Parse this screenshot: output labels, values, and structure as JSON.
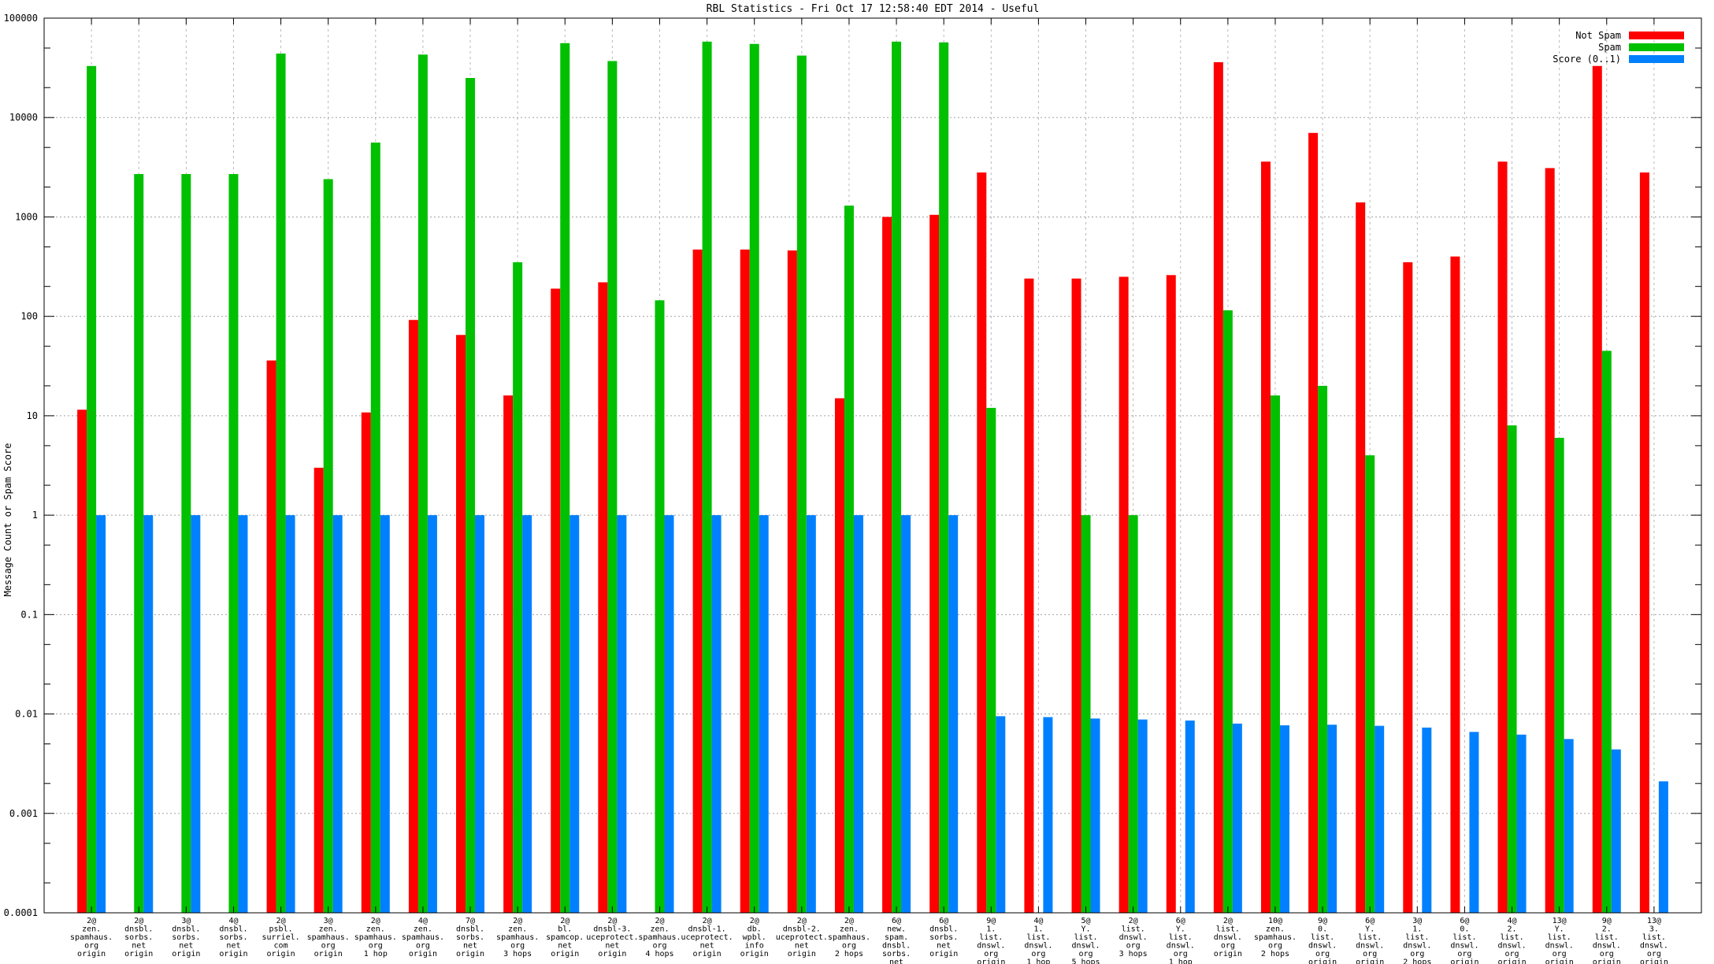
{
  "title": "RBL Statistics - Fri Oct 17 12:58:40 EDT 2014 - Useful",
  "ylabel": "Message Count or Spam Score",
  "legend": [
    {
      "label": "Not Spam",
      "color": "#ff0000"
    },
    {
      "label": "Spam",
      "color": "#00c000"
    },
    {
      "label": "Score (0..1)",
      "color": "#0080ff"
    }
  ],
  "colors": {
    "not_spam": "#ff0000",
    "spam": "#00c000",
    "score": "#0080ff",
    "grid_major": "#a0a0a0",
    "grid_vertical": "#b8b8b8",
    "border": "#000000"
  },
  "chart_data": {
    "type": "bar",
    "y_scale": "log",
    "ylim": [
      0.0001,
      100000
    ],
    "grid": true,
    "legend_position": "top-right",
    "y_ticks": [
      "100000",
      "10000",
      "1000",
      "100",
      "10",
      "1",
      "0.1",
      "0.01",
      "0.001",
      "0.0001"
    ],
    "categories": [
      [
        "2@",
        "zen.",
        "spamhaus.",
        "org",
        "origin"
      ],
      [
        "2@",
        "dnsbl.",
        "sorbs.",
        "net",
        "origin"
      ],
      [
        "3@",
        "dnsbl.",
        "sorbs.",
        "net",
        "origin"
      ],
      [
        "4@",
        "dnsbl.",
        "sorbs.",
        "net",
        "origin"
      ],
      [
        "2@",
        "psbl.",
        "surriel.",
        "com",
        "origin"
      ],
      [
        "3@",
        "zen.",
        "spamhaus.",
        "org",
        "origin"
      ],
      [
        "2@",
        "zen.",
        "spamhaus.",
        "org",
        "1 hop"
      ],
      [
        "4@",
        "zen.",
        "spamhaus.",
        "org",
        "origin"
      ],
      [
        "7@",
        "dnsbl.",
        "sorbs.",
        "net",
        "origin"
      ],
      [
        "2@",
        "zen.",
        "spamhaus.",
        "org",
        "3 hops"
      ],
      [
        "2@",
        "bl.",
        "spamcop.",
        "net",
        "origin"
      ],
      [
        "2@",
        "dnsbl-3.",
        "uceprotect.",
        "net",
        "origin"
      ],
      [
        "2@",
        "zen.",
        "spamhaus.",
        "org",
        "4 hops"
      ],
      [
        "2@",
        "dnsbl-1.",
        "uceprotect.",
        "net",
        "origin"
      ],
      [
        "2@",
        "db.",
        "wpbl.",
        "info",
        "origin"
      ],
      [
        "2@",
        "dnsbl-2.",
        "uceprotect.",
        "net",
        "origin"
      ],
      [
        "2@",
        "zen.",
        "spamhaus.",
        "org",
        "2 hops"
      ],
      [
        "6@",
        "new.",
        "spam.",
        "dnsbl.",
        "sorbs.",
        "net",
        "origin"
      ],
      [
        "6@",
        "dnsbl.",
        "sorbs.",
        "net",
        "origin"
      ],
      [
        "9@",
        "1.",
        "list.",
        "dnswl.",
        "org",
        "origin"
      ],
      [
        "4@",
        "1.",
        "list.",
        "dnswl.",
        "org",
        "1 hop"
      ],
      [
        "5@",
        "Y.",
        "list.",
        "dnswl.",
        "org",
        "5 hops"
      ],
      [
        "2@",
        "list.",
        "dnswl.",
        "org",
        "3 hops"
      ],
      [
        "6@",
        "Y.",
        "list.",
        "dnswl.",
        "org",
        "1 hop"
      ],
      [
        "2@",
        "list.",
        "dnswl.",
        "org",
        "origin"
      ],
      [
        "10@",
        "zen.",
        "spamhaus.",
        "org",
        "2 hops"
      ],
      [
        "9@",
        "0.",
        "list.",
        "dnswl.",
        "org",
        "origin"
      ],
      [
        "6@",
        "Y.",
        "list.",
        "dnswl.",
        "org",
        "origin"
      ],
      [
        "3@",
        "1.",
        "list.",
        "dnswl.",
        "org",
        "2 hops"
      ],
      [
        "6@",
        "0.",
        "list.",
        "dnswl.",
        "org",
        "origin"
      ],
      [
        "4@",
        "2.",
        "list.",
        "dnswl.",
        "org",
        "origin"
      ],
      [
        "13@",
        "Y.",
        "list.",
        "dnswl.",
        "org",
        "origin"
      ],
      [
        "9@",
        "2.",
        "list.",
        "dnswl.",
        "org",
        "origin"
      ],
      [
        "13@",
        "3.",
        "list.",
        "dnswl.",
        "org",
        "origin"
      ]
    ],
    "series": [
      {
        "name": "Not Spam",
        "color": "#ff0000",
        "values": [
          11.5,
          null,
          null,
          null,
          36,
          3,
          10.8,
          92,
          65,
          16,
          190,
          220,
          null,
          470,
          470,
          460,
          15,
          1000,
          1050,
          2800,
          240,
          240,
          250,
          260,
          36000,
          3600,
          7000,
          1400,
          350,
          400,
          3600,
          3100,
          33000,
          2800
        ]
      },
      {
        "name": "Spam",
        "color": "#00c000",
        "values": [
          33000,
          2700,
          2700,
          2700,
          44000,
          2400,
          5600,
          43000,
          25000,
          350,
          56000,
          37000,
          145,
          58000,
          55000,
          42000,
          1300,
          58000,
          57000,
          12,
          null,
          1,
          1,
          null,
          115,
          16,
          20,
          4,
          null,
          null,
          8,
          6,
          45,
          null
        ]
      },
      {
        "name": "Score (0..1)",
        "color": "#0080ff",
        "values": [
          1,
          1,
          1,
          1,
          1,
          1,
          1,
          1,
          1,
          1,
          1,
          1,
          1,
          1,
          1,
          1,
          1,
          1,
          1,
          0.0095,
          0.0093,
          0.009,
          0.0088,
          0.0086,
          0.008,
          0.0077,
          0.0078,
          0.0076,
          0.0073,
          0.0066,
          0.0062,
          0.0056,
          0.0044,
          0.0021
        ]
      }
    ]
  }
}
